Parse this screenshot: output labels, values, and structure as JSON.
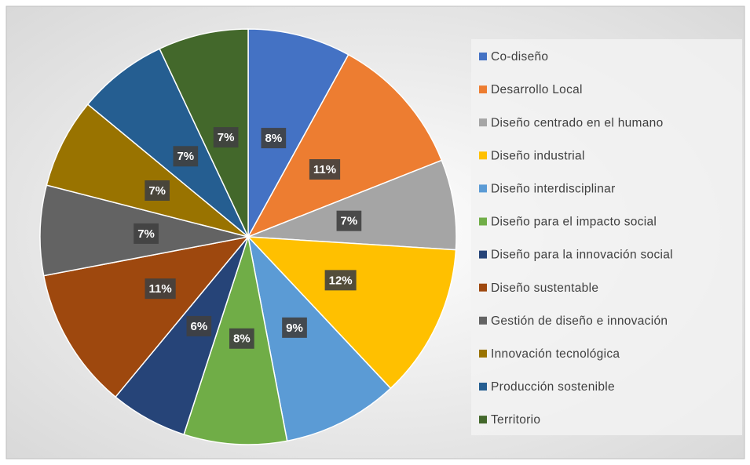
{
  "chart_data": {
    "type": "pie",
    "categories": [
      "Co-diseño",
      "Desarrollo Local",
      "Diseño centrado en el humano",
      "Diseño industrial",
      "Diseño interdisciplinar",
      "Diseño para el impacto social",
      "Diseño para la innovación social",
      "Diseño sustentable",
      "Gestión de diseño e innovación",
      "Innovación tecnológica",
      "Producción sostenible",
      "Territorio"
    ],
    "values": [
      8,
      11,
      7,
      12,
      9,
      8,
      6,
      11,
      7,
      7,
      7,
      7
    ],
    "value_labels": [
      "8%",
      "11%",
      "7%",
      "12%",
      "9%",
      "8%",
      "6%",
      "11%",
      "7%",
      "7%",
      "7%",
      "7%"
    ],
    "colors": [
      "#4472c4",
      "#ed7d31",
      "#a5a5a5",
      "#ffc000",
      "#5b9bd5",
      "#70ad47",
      "#264478",
      "#9e480e",
      "#636363",
      "#997300",
      "#255e91",
      "#43682b"
    ],
    "legend": "right"
  }
}
